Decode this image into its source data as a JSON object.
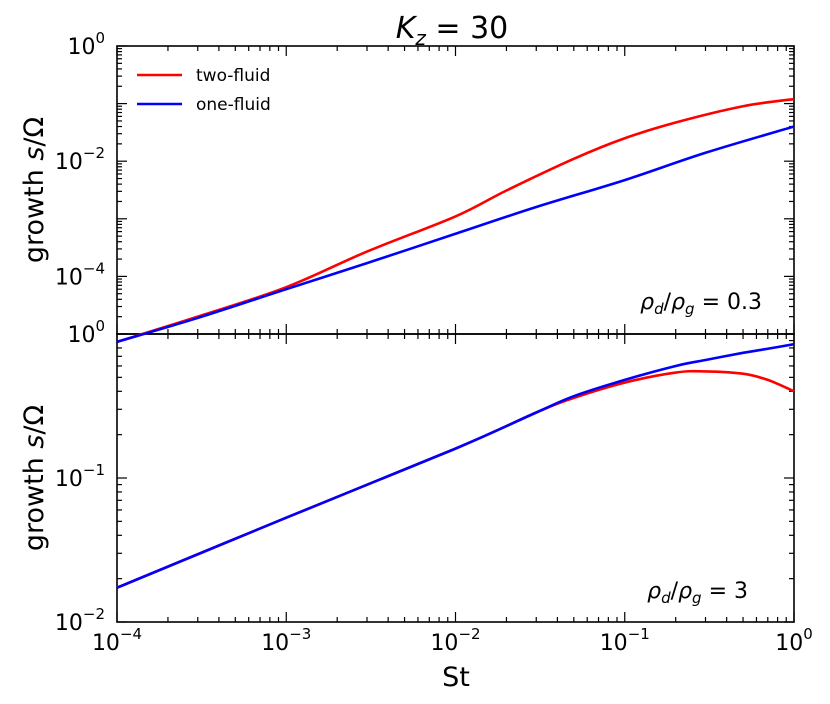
{
  "chart_data": [
    {
      "type": "line",
      "title": "K_z = 30",
      "title_parts": {
        "base": "K",
        "sub": "z",
        "rest": " = 30"
      },
      "xscale": "log",
      "yscale": "log",
      "xlim": [
        0.0001,
        1
      ],
      "ylim": [
        1e-05,
        1
      ],
      "xlabel": "",
      "ylabel": "growth s/Ω",
      "ylabel_parts": {
        "pre": "growth ",
        "ital": "s",
        "post": "/Ω"
      },
      "yticks": [
        {
          "base": "10",
          "exp": "0",
          "value": 1
        },
        {
          "base": "10",
          "exp": "−2",
          "value": 0.01
        },
        {
          "base": "10",
          "exp": "−4",
          "value": 0.0001
        }
      ],
      "annotation": "ρd/ρg = 0.3",
      "annotation_parts": {
        "a": "ρ",
        "asub": "d",
        "slash": "/",
        "b": "ρ",
        "bsub": "g",
        "rest": " = 0.3"
      },
      "legend": {
        "placement": "top-left",
        "entries": [
          "two-fluid",
          "one-fluid"
        ]
      },
      "series": [
        {
          "name": "two-fluid",
          "color": "#ff0000",
          "x": [
            0.0001,
            0.0003,
            0.001,
            0.003,
            0.01,
            0.02,
            0.05,
            0.1,
            0.2,
            0.5,
            1
          ],
          "y": [
            7.3e-06,
            2e-05,
            6.5e-05,
            0.00027,
            0.0011,
            0.0031,
            0.011,
            0.025,
            0.047,
            0.09,
            0.12
          ]
        },
        {
          "name": "one-fluid",
          "color": "#0000ff",
          "x": [
            0.0001,
            0.0003,
            0.001,
            0.003,
            0.01,
            0.03,
            0.1,
            0.3,
            1
          ],
          "y": [
            7.3e-06,
            1.9e-05,
            6e-05,
            0.00017,
            0.00055,
            0.0016,
            0.0047,
            0.014,
            0.04
          ]
        }
      ]
    },
    {
      "type": "line",
      "xscale": "log",
      "yscale": "log",
      "xlim": [
        0.0001,
        1
      ],
      "ylim": [
        0.01,
        1
      ],
      "xlabel": "St",
      "ylabel": "growth s/Ω",
      "ylabel_parts": {
        "pre": "growth ",
        "ital": "s",
        "post": "/Ω"
      },
      "xticks": [
        {
          "base": "10",
          "exp": "−4",
          "value": 0.0001
        },
        {
          "base": "10",
          "exp": "−3",
          "value": 0.001
        },
        {
          "base": "10",
          "exp": "−2",
          "value": 0.01
        },
        {
          "base": "10",
          "exp": "−1",
          "value": 0.1
        },
        {
          "base": "10",
          "exp": "0",
          "value": 1
        }
      ],
      "yticks": [
        {
          "base": "10",
          "exp": "0",
          "value": 1
        },
        {
          "base": "10",
          "exp": "−1",
          "value": 0.1
        },
        {
          "base": "10",
          "exp": "−2",
          "value": 0.01
        }
      ],
      "annotation": "ρd/ρg = 3",
      "annotation_parts": {
        "a": "ρ",
        "asub": "d",
        "slash": "/",
        "b": "ρ",
        "bsub": "g",
        "rest": " = 3"
      },
      "series": [
        {
          "name": "two-fluid",
          "color": "#ff0000",
          "x": [
            0.0001,
            0.001,
            0.01,
            0.03,
            0.05,
            0.1,
            0.2,
            0.3,
            0.5,
            0.7,
            1
          ],
          "y": [
            0.0173,
            0.053,
            0.16,
            0.285,
            0.36,
            0.46,
            0.54,
            0.55,
            0.53,
            0.48,
            0.4
          ]
        },
        {
          "name": "one-fluid",
          "color": "#0000ff",
          "x": [
            0.0001,
            0.001,
            0.01,
            0.03,
            0.05,
            0.1,
            0.2,
            0.3,
            0.5,
            0.7,
            1
          ],
          "y": [
            0.0173,
            0.053,
            0.16,
            0.285,
            0.37,
            0.48,
            0.6,
            0.66,
            0.74,
            0.79,
            0.85
          ]
        }
      ]
    }
  ]
}
